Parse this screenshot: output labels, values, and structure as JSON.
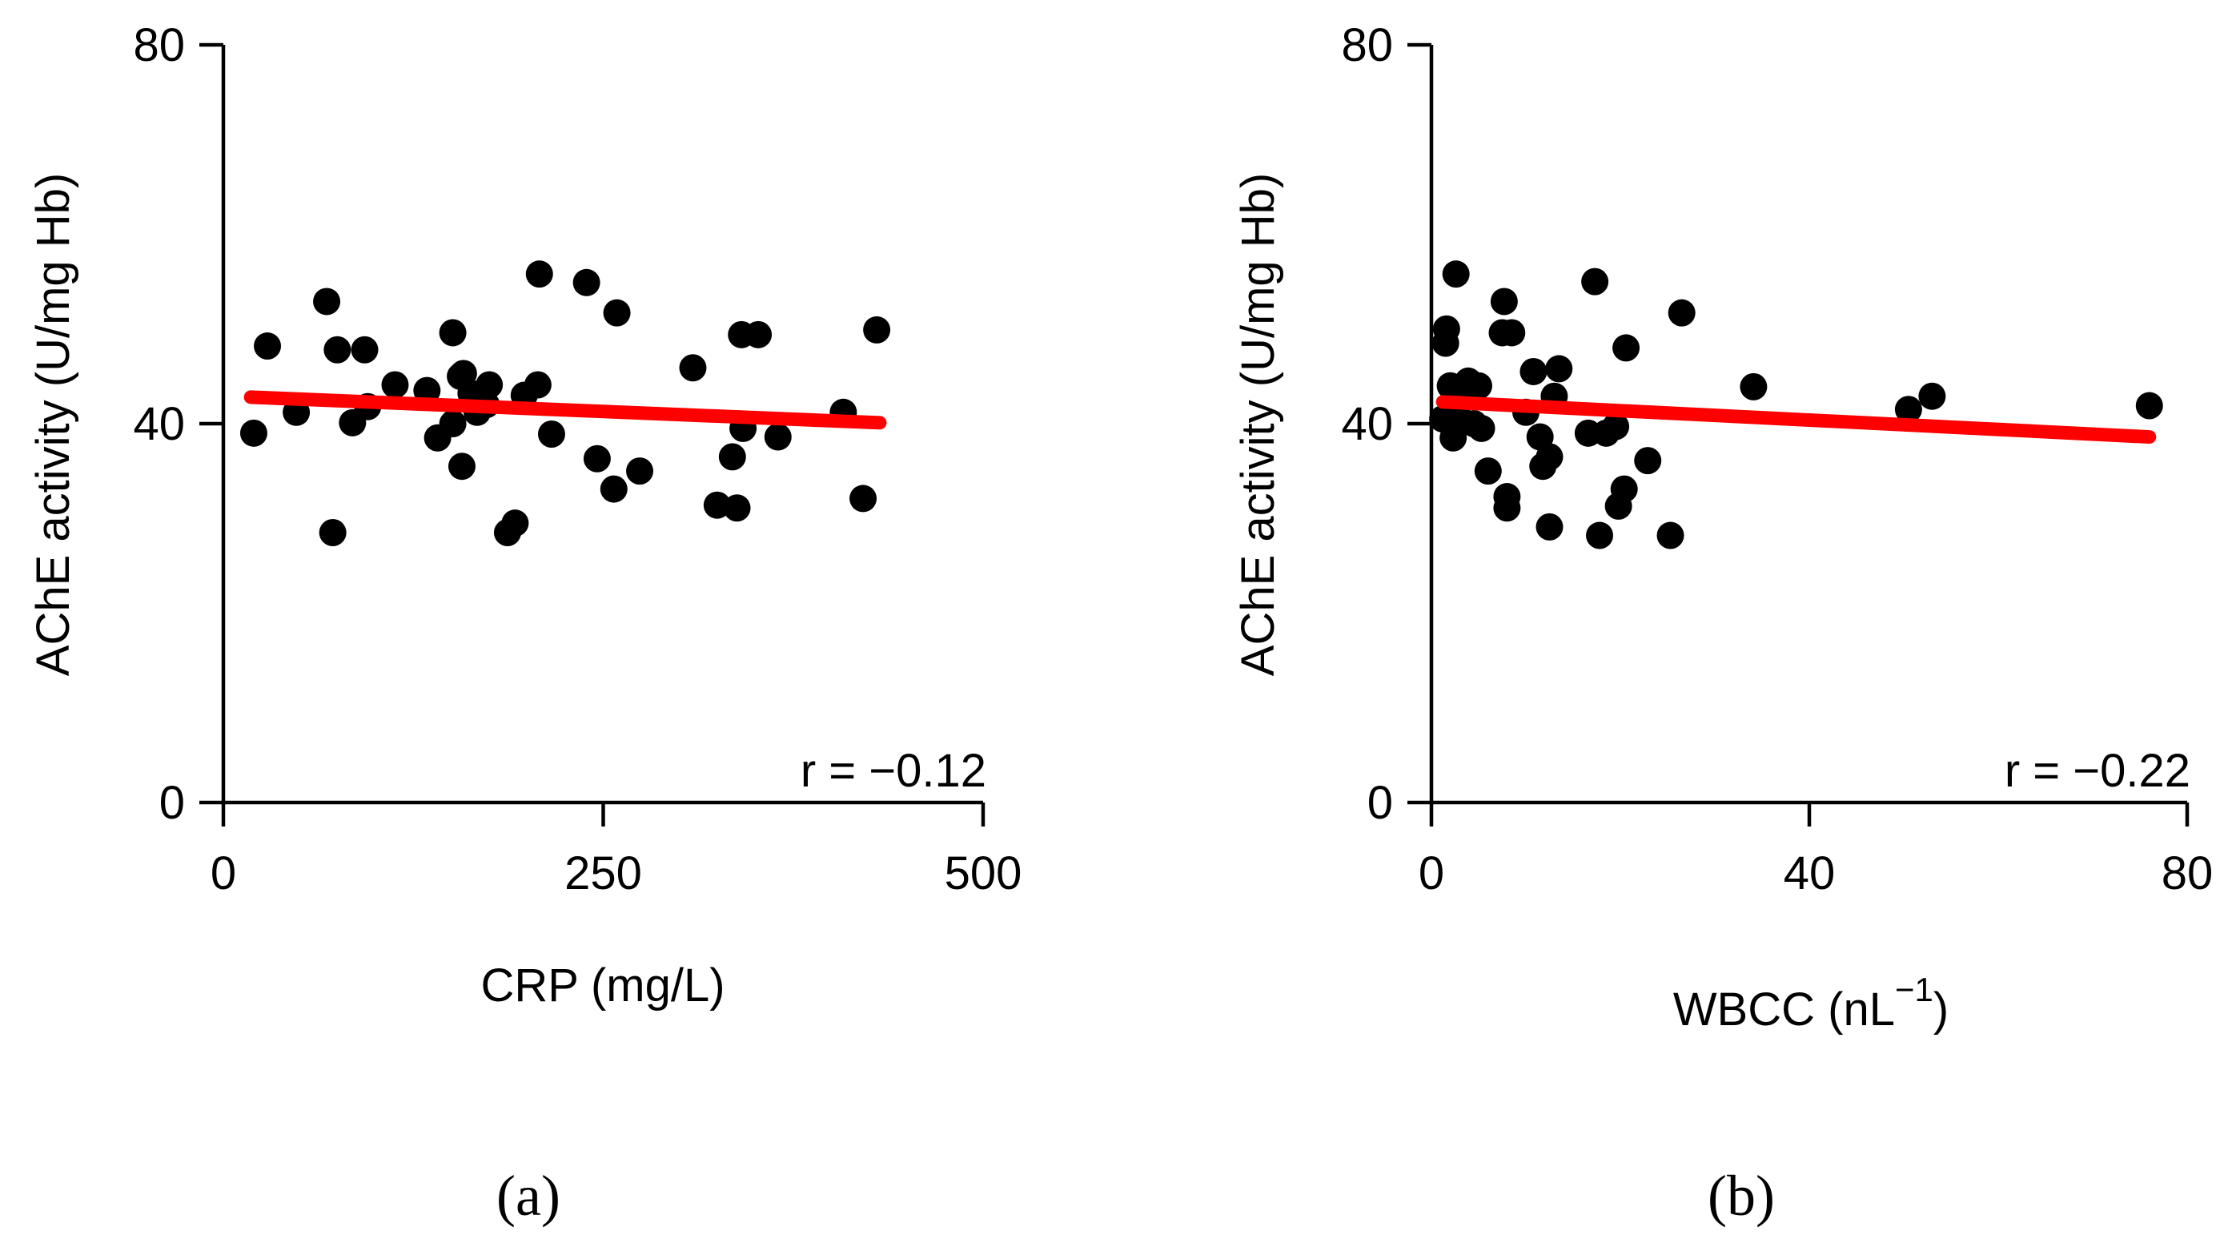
{
  "colors": {
    "points": "#000000",
    "fit_line": "#ff0000",
    "axes": "#000000"
  },
  "chart_data": [
    {
      "type": "scatter",
      "panel_label": "(a)",
      "xlabel": "CRP (mg/L)",
      "ylabel": "AChE activity (U/mg Hb)",
      "xlim": [
        0,
        500
      ],
      "ylim": [
        0,
        80
      ],
      "xticks": [
        0,
        250,
        500
      ],
      "yticks": [
        0,
        40,
        80
      ],
      "annotation": "r = −0.12",
      "fit_line": {
        "x": [
          18,
          432
        ],
        "y": [
          42.8,
          40.1
        ]
      },
      "points": [
        [
          20,
          39
        ],
        [
          29,
          48.2
        ],
        [
          48,
          41.2
        ],
        [
          68,
          52.9
        ],
        [
          72,
          28.5
        ],
        [
          75,
          47.8
        ],
        [
          85,
          40.1
        ],
        [
          93,
          47.8
        ],
        [
          95,
          41.8
        ],
        [
          113,
          44.1
        ],
        [
          134,
          43.5
        ],
        [
          141,
          38.5
        ],
        [
          151,
          40
        ],
        [
          151,
          49.6
        ],
        [
          156,
          45
        ],
        [
          157,
          35.5
        ],
        [
          158,
          45.3
        ],
        [
          163,
          43.2
        ],
        [
          167,
          41.2
        ],
        [
          173,
          42
        ],
        [
          175,
          44.1
        ],
        [
          187,
          28.5
        ],
        [
          192,
          29.5
        ],
        [
          198,
          43
        ],
        [
          207,
          44.1
        ],
        [
          208,
          55.8
        ],
        [
          216,
          38.9
        ],
        [
          239,
          54.9
        ],
        [
          246,
          36.3
        ],
        [
          257,
          33.1
        ],
        [
          259,
          51.7
        ],
        [
          274,
          35
        ],
        [
          309,
          45.9
        ],
        [
          325,
          31.4
        ],
        [
          335,
          36.5
        ],
        [
          338,
          31.1
        ],
        [
          341,
          49.4
        ],
        [
          342,
          39.5
        ],
        [
          352,
          49.4
        ],
        [
          365,
          38.6
        ],
        [
          408,
          41.2
        ],
        [
          421,
          32.1
        ],
        [
          430,
          49.9
        ]
      ]
    },
    {
      "type": "scatter",
      "panel_label": "(b)",
      "xlabel": "WBCC (nL",
      "xlabel_sup": "−1",
      "xlabel_tail": ")",
      "ylabel": "AChE activity (U/mg Hb)",
      "xlim": [
        0,
        80
      ],
      "ylim": [
        0,
        80
      ],
      "xticks": [
        0,
        40,
        80
      ],
      "yticks": [
        0,
        40,
        80
      ],
      "annotation": "r = −0.22",
      "fit_line": {
        "x": [
          1.2,
          76
        ],
        "y": [
          42.3,
          38.6
        ]
      },
      "points": [
        [
          1.2,
          40.5
        ],
        [
          1.5,
          48.5
        ],
        [
          1.6,
          50
        ],
        [
          2,
          44
        ],
        [
          2.3,
          38.5
        ],
        [
          2.6,
          55.8
        ],
        [
          3,
          40.5
        ],
        [
          3.5,
          44
        ],
        [
          3.9,
          44.5
        ],
        [
          4.5,
          40
        ],
        [
          5,
          44
        ],
        [
          5.3,
          39.5
        ],
        [
          6,
          35
        ],
        [
          7.5,
          49.6
        ],
        [
          7.7,
          52.9
        ],
        [
          8,
          31.1
        ],
        [
          8,
          32.3
        ],
        [
          8.5,
          49.6
        ],
        [
          10,
          41.2
        ],
        [
          10.8,
          45.5
        ],
        [
          11.5,
          38.6
        ],
        [
          11.8,
          35.5
        ],
        [
          12.5,
          36.5
        ],
        [
          12.5,
          29.1
        ],
        [
          13,
          42.9
        ],
        [
          13.5,
          45.8
        ],
        [
          16.6,
          39
        ],
        [
          17.3,
          55
        ],
        [
          17.8,
          28.2
        ],
        [
          18.5,
          39
        ],
        [
          19.5,
          39.7
        ],
        [
          19.8,
          31.3
        ],
        [
          20.4,
          33.1
        ],
        [
          20.6,
          48
        ],
        [
          22.9,
          36.1
        ],
        [
          25.3,
          28.2
        ],
        [
          26.5,
          51.7
        ],
        [
          34.1,
          43.9
        ],
        [
          50.5,
          41.5
        ],
        [
          53,
          42.9
        ],
        [
          76,
          41.9
        ]
      ]
    }
  ]
}
